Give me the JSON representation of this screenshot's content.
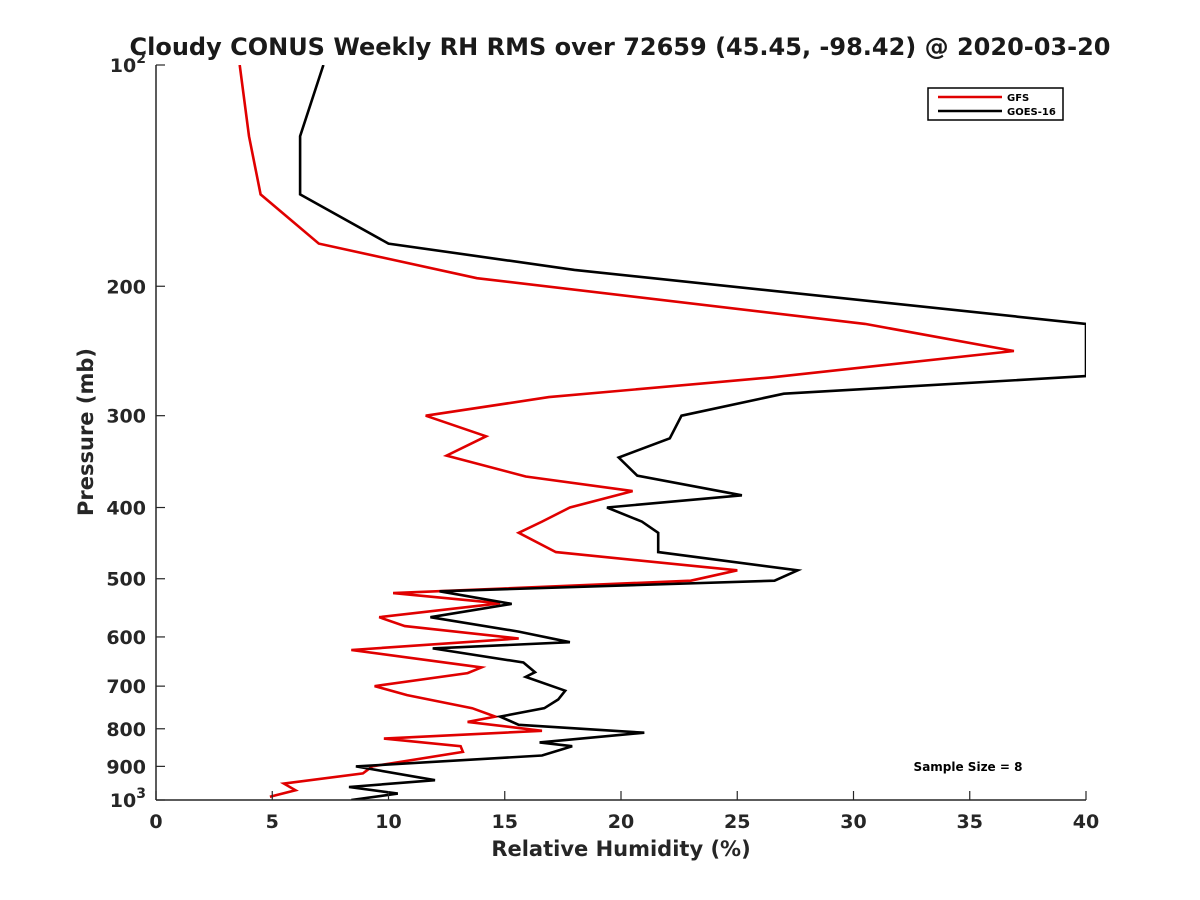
{
  "chart_data": {
    "type": "line",
    "title": "Cloudy CONUS Weekly RH RMS over 72659 (45.45, -98.42) @ 2020-03-20",
    "xlabel": "Relative Humidity (%)",
    "ylabel": "Pressure (mb)",
    "xlim": [
      0,
      40
    ],
    "ylim": [
      100,
      1000
    ],
    "y_scale": "log",
    "y_reversed": true,
    "grid": false,
    "legend_position": "top-right",
    "x_ticks": [
      "0",
      "5",
      "10",
      "15",
      "20",
      "25",
      "30",
      "35",
      "40"
    ],
    "y_ticks": [
      {
        "value": 100,
        "base": "10",
        "exp": "2",
        "text": ""
      },
      {
        "value": 200,
        "text": "200"
      },
      {
        "value": 300,
        "text": "300"
      },
      {
        "value": 400,
        "text": "400"
      },
      {
        "value": 500,
        "text": "500"
      },
      {
        "value": 600,
        "text": "600"
      },
      {
        "value": 700,
        "text": "700"
      },
      {
        "value": 800,
        "text": "800"
      },
      {
        "value": 900,
        "text": "900"
      },
      {
        "value": 1000,
        "base": "10",
        "exp": "3",
        "text": ""
      }
    ],
    "series": [
      {
        "name": "GFS",
        "color": "#e00000",
        "points": [
          [
            3.6,
            100
          ],
          [
            4.0,
            125
          ],
          [
            4.5,
            150
          ],
          [
            7.0,
            175
          ],
          [
            13.8,
            195
          ],
          [
            30.5,
            225
          ],
          [
            36.9,
            245
          ],
          [
            26.5,
            266
          ],
          [
            16.9,
            283
          ],
          [
            11.6,
            300
          ],
          [
            14.2,
            320
          ],
          [
            12.5,
            340
          ],
          [
            15.9,
            363
          ],
          [
            20.5,
            380
          ],
          [
            17.8,
            400
          ],
          [
            16.6,
            418
          ],
          [
            15.6,
            433
          ],
          [
            17.2,
            460
          ],
          [
            25.0,
            487
          ],
          [
            23.0,
            503
          ],
          [
            10.2,
            523
          ],
          [
            14.8,
            540
          ],
          [
            9.6,
            564
          ],
          [
            10.7,
            580
          ],
          [
            15.6,
            603
          ],
          [
            8.4,
            625
          ],
          [
            14.0,
            660
          ],
          [
            13.4,
            672
          ],
          [
            9.4,
            700
          ],
          [
            10.8,
            720
          ],
          [
            13.6,
            750
          ],
          [
            14.6,
            770
          ],
          [
            13.4,
            783
          ],
          [
            16.6,
            805
          ],
          [
            9.8,
            825
          ],
          [
            13.1,
            845
          ],
          [
            13.2,
            860
          ],
          [
            9.3,
            900
          ],
          [
            8.9,
            920
          ],
          [
            5.5,
            950
          ],
          [
            6.0,
            970
          ],
          [
            4.9,
            990
          ]
        ]
      },
      {
        "name": "GOES-16",
        "color": "#000000",
        "points": [
          [
            7.2,
            100
          ],
          [
            6.2,
            125
          ],
          [
            6.2,
            150
          ],
          [
            10.0,
            175
          ],
          [
            18.0,
            190
          ],
          [
            40,
            225
          ],
          [
            40,
            265
          ],
          [
            27.0,
            280
          ],
          [
            22.6,
            300
          ],
          [
            22.1,
            322
          ],
          [
            19.9,
            342
          ],
          [
            20.7,
            362
          ],
          [
            25.2,
            385
          ],
          [
            19.4,
            400
          ],
          [
            20.9,
            418
          ],
          [
            21.6,
            433
          ],
          [
            21.6,
            460
          ],
          [
            27.6,
            487
          ],
          [
            26.6,
            503
          ],
          [
            12.2,
            520
          ],
          [
            15.3,
            541
          ],
          [
            11.8,
            564
          ],
          [
            15.6,
            590
          ],
          [
            17.8,
            610
          ],
          [
            11.9,
            622
          ],
          [
            15.8,
            650
          ],
          [
            16.3,
            670
          ],
          [
            15.9,
            680
          ],
          [
            17.6,
            710
          ],
          [
            17.3,
            730
          ],
          [
            16.7,
            750
          ],
          [
            14.8,
            770
          ],
          [
            15.6,
            790
          ],
          [
            21.0,
            810
          ],
          [
            16.5,
            835
          ],
          [
            17.9,
            845
          ],
          [
            16.6,
            870
          ],
          [
            8.6,
            900
          ],
          [
            12.0,
            940
          ],
          [
            8.3,
            960
          ],
          [
            10.4,
            980
          ],
          [
            8.4,
            1000
          ]
        ]
      }
    ],
    "annotations": [
      {
        "text": "Sample Size = 8",
        "x": 35.0,
        "y": 900
      }
    ]
  }
}
